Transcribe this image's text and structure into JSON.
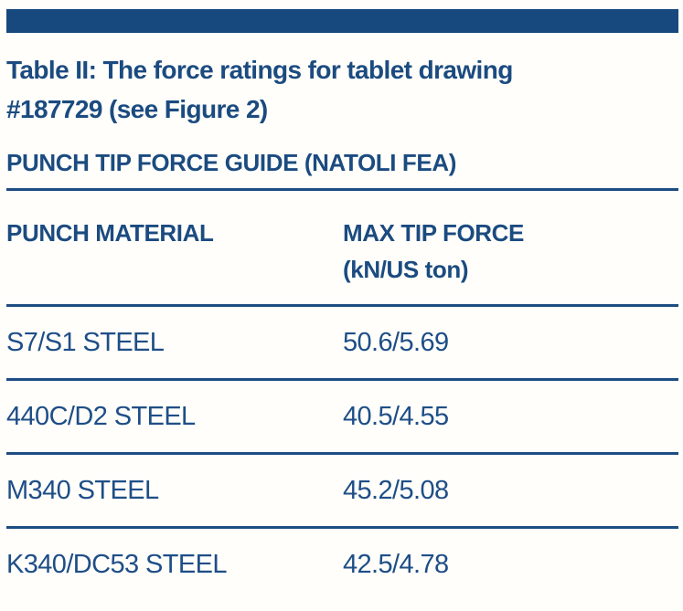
{
  "page": {
    "accent_color": "#17497e",
    "background_color": "#fffefa"
  },
  "caption": {
    "title_line1": "Table II: The force ratings for tablet drawing",
    "title_line2": "#187729 (see Figure 2)"
  },
  "section": {
    "heading": "PUNCH TIP FORCE GUIDE (NATOLI FEA)"
  },
  "table": {
    "columns": [
      {
        "label": "PUNCH MATERIAL",
        "sublabel": ""
      },
      {
        "label": "MAX TIP FORCE",
        "sublabel": "(kN/US ton)"
      }
    ],
    "rows": [
      {
        "material": "S7/S1 STEEL",
        "max_tip_force": "50.6/5.69"
      },
      {
        "material": "440C/D2 STEEL",
        "max_tip_force": "40.5/4.55"
      },
      {
        "material": "M340 STEEL",
        "max_tip_force": "45.2/5.08"
      },
      {
        "material": "K340/DC53 STEEL",
        "max_tip_force": "42.5/4.78"
      }
    ]
  }
}
